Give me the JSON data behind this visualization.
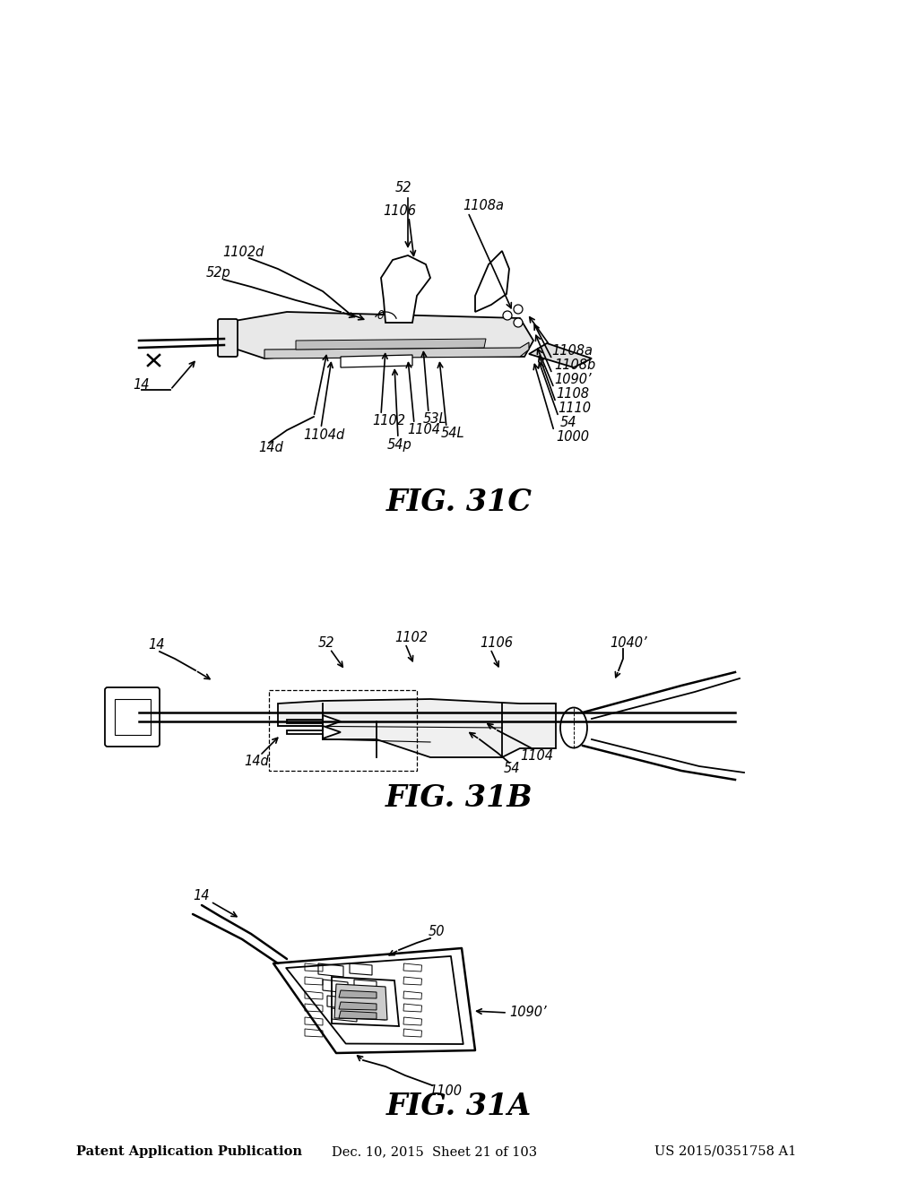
{
  "background_color": "#ffffff",
  "header_text": "Patent Application Publication",
  "header_date": "Dec. 10, 2015  Sheet 21 of 103",
  "header_patent": "US 2015/0351758 A1",
  "fig31a_title": "FIG. 31A",
  "fig31b_title": "FIG. 31B",
  "fig31c_title": "FIG. 31C",
  "title_fontsize": 24,
  "label_fontsize": 10.5,
  "header_fontsize": 10.5
}
